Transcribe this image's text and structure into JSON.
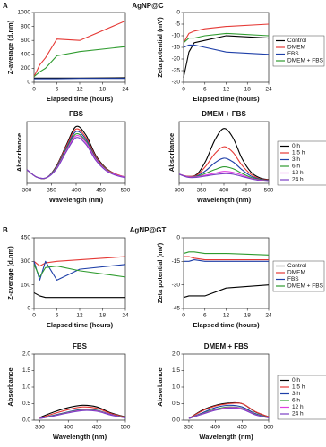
{
  "figure": {
    "panels": [
      {
        "label": "A",
        "title": "AgNP@C"
      },
      {
        "label": "B",
        "title": "AgNP@GT"
      }
    ]
  },
  "chart_data": [
    {
      "type": "line",
      "xlabel": "Elapsed time (hours)",
      "ylabel": "Z-average (d.nm)",
      "x": [
        0,
        1.5,
        3,
        6,
        12,
        24
      ],
      "xlim": [
        0,
        24
      ],
      "xticks": [
        0,
        6,
        12,
        18,
        24
      ],
      "ylim": [
        0,
        1000
      ],
      "yticks": [
        0,
        200,
        400,
        600,
        800,
        1000
      ],
      "series": [
        {
          "color": "#000000",
          "values": [
            60,
            60,
            60,
            60,
            60,
            65
          ]
        },
        {
          "color": "#e53935",
          "values": [
            80,
            250,
            350,
            620,
            600,
            880
          ]
        },
        {
          "color": "#1e3fa8",
          "values": [
            50,
            50,
            50,
            50,
            55,
            55
          ]
        },
        {
          "color": "#2e9b2e",
          "values": [
            80,
            150,
            200,
            380,
            440,
            510
          ]
        }
      ]
    },
    {
      "type": "line",
      "xlabel": "Elapsed time (hours)",
      "ylabel": "Zeta potential (mV)",
      "legend": "outside right",
      "x": [
        0,
        1.5,
        3,
        6,
        12,
        24
      ],
      "xlim": [
        0,
        24
      ],
      "xticks": [
        0,
        6,
        12,
        18,
        24
      ],
      "ylim": [
        -30,
        0
      ],
      "yticks": [
        0,
        -5,
        -10,
        -15,
        -20,
        -25,
        -30
      ],
      "series": [
        {
          "name": "Control",
          "color": "#000000",
          "values": [
            -28,
            -17,
            -13,
            -12,
            -10,
            -11
          ]
        },
        {
          "name": "DMEM",
          "color": "#e53935",
          "values": [
            -13,
            -9,
            -8,
            -7,
            -6,
            -5
          ]
        },
        {
          "name": "FBS",
          "color": "#1e3fa8",
          "values": [
            -15,
            -14,
            -14,
            -15,
            -17,
            -18
          ]
        },
        {
          "name": "DMEM + FBS",
          "color": "#2e9b2e",
          "values": [
            -13,
            -11,
            -11,
            -10,
            -9,
            -10
          ]
        }
      ]
    },
    {
      "type": "line",
      "title": "FBS",
      "xlabel": "Wavelength (nm)",
      "ylabel": "Absorbance",
      "x": [
        300,
        320,
        340,
        360,
        380,
        400,
        420,
        440,
        460,
        480,
        500
      ],
      "xlim": [
        300,
        500
      ],
      "xticks": [
        300,
        350,
        400,
        450,
        500
      ],
      "ylim": [
        0,
        1
      ],
      "series": [
        {
          "color": "#000000",
          "values": [
            0.22,
            0.1,
            0.09,
            0.28,
            0.62,
            0.92,
            0.78,
            0.45,
            0.25,
            0.15,
            0.1
          ]
        },
        {
          "color": "#e53935",
          "values": [
            0.22,
            0.1,
            0.09,
            0.27,
            0.6,
            0.88,
            0.74,
            0.43,
            0.24,
            0.15,
            0.1
          ]
        },
        {
          "color": "#1e3fa8",
          "values": [
            0.22,
            0.1,
            0.09,
            0.26,
            0.57,
            0.84,
            0.71,
            0.41,
            0.23,
            0.14,
            0.1
          ]
        },
        {
          "color": "#2e9b2e",
          "values": [
            0.22,
            0.1,
            0.09,
            0.25,
            0.55,
            0.8,
            0.68,
            0.4,
            0.23,
            0.14,
            0.1
          ]
        },
        {
          "color": "#e040e0",
          "values": [
            0.22,
            0.1,
            0.09,
            0.24,
            0.53,
            0.77,
            0.66,
            0.39,
            0.22,
            0.14,
            0.1
          ]
        },
        {
          "color": "#7b3fc4",
          "values": [
            0.22,
            0.1,
            0.09,
            0.23,
            0.51,
            0.74,
            0.63,
            0.37,
            0.21,
            0.13,
            0.09
          ]
        }
      ]
    },
    {
      "type": "line",
      "title": "DMEM + FBS",
      "xlabel": "Wavelength (nm)",
      "ylabel": "Absorbance",
      "legend": "outside right",
      "x": [
        300,
        320,
        340,
        360,
        380,
        400,
        420,
        440,
        460,
        480,
        500
      ],
      "xlim": [
        300,
        500
      ],
      "xticks": [
        300,
        350,
        400,
        450,
        500
      ],
      "ylim": [
        0,
        1.35
      ],
      "series": [
        {
          "name": "0 h",
          "color": "#000000",
          "values": [
            0.2,
            0.15,
            0.2,
            0.5,
            0.95,
            1.2,
            1.0,
            0.55,
            0.25,
            0.12,
            0.08
          ]
        },
        {
          "name": "1.5 h",
          "color": "#e53935",
          "values": [
            0.2,
            0.15,
            0.18,
            0.38,
            0.65,
            0.8,
            0.68,
            0.4,
            0.2,
            0.1,
            0.07
          ]
        },
        {
          "name": "3 h",
          "color": "#1e3fa8",
          "values": [
            0.2,
            0.14,
            0.16,
            0.28,
            0.45,
            0.55,
            0.47,
            0.3,
            0.16,
            0.09,
            0.06
          ]
        },
        {
          "name": "6 h",
          "color": "#2e9b2e",
          "values": [
            0.2,
            0.14,
            0.15,
            0.22,
            0.3,
            0.36,
            0.32,
            0.22,
            0.13,
            0.08,
            0.05
          ]
        },
        {
          "name": "12 h",
          "color": "#e040e0",
          "values": [
            0.2,
            0.14,
            0.14,
            0.18,
            0.22,
            0.26,
            0.24,
            0.18,
            0.11,
            0.07,
            0.05
          ]
        },
        {
          "name": "24 h",
          "color": "#7b3fc4",
          "values": [
            0.2,
            0.13,
            0.13,
            0.16,
            0.19,
            0.21,
            0.2,
            0.15,
            0.1,
            0.06,
            0.04
          ]
        }
      ]
    },
    {
      "type": "line",
      "xlabel": "Elapsed time (hours)",
      "ylabel": "Z-average (d.nm)",
      "x": [
        0,
        1.5,
        3,
        6,
        12,
        24
      ],
      "xlim": [
        0,
        24
      ],
      "xticks": [
        0,
        6,
        12,
        18,
        24
      ],
      "ylim": [
        0,
        450
      ],
      "yticks": [
        0,
        150,
        300,
        450
      ],
      "series": [
        {
          "color": "#000000",
          "values": [
            100,
            80,
            70,
            70,
            70,
            70
          ]
        },
        {
          "color": "#e53935",
          "values": [
            300,
            270,
            290,
            300,
            310,
            330
          ]
        },
        {
          "color": "#1e3fa8",
          "values": [
            300,
            180,
            300,
            180,
            250,
            280
          ]
        },
        {
          "color": "#2e9b2e",
          "values": [
            280,
            200,
            260,
            270,
            240,
            200
          ]
        }
      ]
    },
    {
      "type": "line",
      "xlabel": "Elapsed time (hours)",
      "ylabel": "Zeta potential (mV)",
      "legend": "outside right",
      "x": [
        0,
        1.5,
        3,
        6,
        12,
        24
      ],
      "xlim": [
        0,
        24
      ],
      "xticks": [
        0,
        6,
        12,
        18,
        24
      ],
      "ylim": [
        -45,
        0
      ],
      "yticks": [
        0,
        -15,
        -30,
        -45
      ],
      "series": [
        {
          "name": "Control",
          "color": "#000000",
          "values": [
            -38,
            -37,
            -37,
            -37,
            -32,
            -30
          ]
        },
        {
          "name": "DMEM",
          "color": "#e53935",
          "values": [
            -12,
            -12,
            -13,
            -14,
            -14,
            -14
          ]
        },
        {
          "name": "FBS",
          "color": "#1e3fa8",
          "values": [
            -15,
            -15,
            -14,
            -15,
            -15,
            -15
          ]
        },
        {
          "name": "DMEM + FBS",
          "color": "#2e9b2e",
          "values": [
            -10,
            -9,
            -9,
            -10,
            -10,
            -11
          ]
        }
      ]
    },
    {
      "type": "line",
      "title": "FBS",
      "xlabel": "Wavelength (nm)",
      "ylabel": "Absorbance",
      "x": [
        350,
        375,
        400,
        425,
        450,
        475,
        500
      ],
      "xlim": [
        340,
        500
      ],
      "xticks": [
        350,
        400,
        450,
        500
      ],
      "ylim": [
        0,
        2
      ],
      "yticks": [
        {
          "value": 0,
          "label": "0.0"
        },
        {
          "value": 0.5,
          "label": "0.5"
        },
        {
          "value": 1,
          "label": "1.0"
        },
        {
          "value": 1.5,
          "label": "1.5"
        },
        {
          "value": 2,
          "label": "2.0"
        }
      ],
      "series": [
        {
          "color": "#000000",
          "values": [
            0.08,
            0.25,
            0.38,
            0.45,
            0.4,
            0.22,
            0.1
          ]
        },
        {
          "color": "#e53935",
          "values": [
            0.06,
            0.2,
            0.32,
            0.4,
            0.36,
            0.2,
            0.09
          ]
        },
        {
          "color": "#1e3fa8",
          "values": [
            0.05,
            0.15,
            0.25,
            0.33,
            0.3,
            0.17,
            0.08
          ]
        },
        {
          "color": "#2e9b2e",
          "values": [
            0.05,
            0.14,
            0.24,
            0.31,
            0.29,
            0.16,
            0.08
          ]
        },
        {
          "color": "#e040e0",
          "values": [
            0.05,
            0.13,
            0.23,
            0.3,
            0.28,
            0.16,
            0.07
          ]
        },
        {
          "color": "#7b3fc4",
          "values": [
            0.05,
            0.13,
            0.22,
            0.29,
            0.27,
            0.15,
            0.07
          ]
        }
      ]
    },
    {
      "type": "line",
      "title": "DMEM + FBS",
      "xlabel": "Wavelength (nm)",
      "ylabel": "Absorbance",
      "legend": "outside right",
      "x": [
        350,
        375,
        400,
        425,
        450,
        475,
        500
      ],
      "xlim": [
        340,
        500
      ],
      "xticks": [
        350,
        400,
        450,
        500
      ],
      "ylim": [
        0,
        2
      ],
      "yticks": [
        {
          "value": 0,
          "label": "0.0"
        },
        {
          "value": 0.5,
          "label": "0.5"
        },
        {
          "value": 1,
          "label": "1.0"
        },
        {
          "value": 1.5,
          "label": "1.5"
        },
        {
          "value": 2,
          "label": "2.0"
        }
      ],
      "series": [
        {
          "name": "0 h",
          "color": "#000000",
          "values": [
            0.05,
            0.3,
            0.45,
            0.52,
            0.5,
            0.25,
            0.1
          ]
        },
        {
          "name": "1.5 h",
          "color": "#e53935",
          "values": [
            0.05,
            0.28,
            0.43,
            0.5,
            0.5,
            0.26,
            0.1
          ]
        },
        {
          "name": "3 h",
          "color": "#1e3fa8",
          "values": [
            0.05,
            0.22,
            0.38,
            0.45,
            0.4,
            0.2,
            0.08
          ]
        },
        {
          "name": "6 h",
          "color": "#2e9b2e",
          "values": [
            0.05,
            0.2,
            0.33,
            0.4,
            0.36,
            0.18,
            0.08
          ]
        },
        {
          "name": "12 h",
          "color": "#e040e0",
          "values": [
            0.05,
            0.19,
            0.31,
            0.38,
            0.35,
            0.17,
            0.07
          ]
        },
        {
          "name": "24 h",
          "color": "#7b3fc4",
          "values": [
            0.05,
            0.18,
            0.3,
            0.36,
            0.33,
            0.16,
            0.07
          ]
        }
      ]
    }
  ]
}
